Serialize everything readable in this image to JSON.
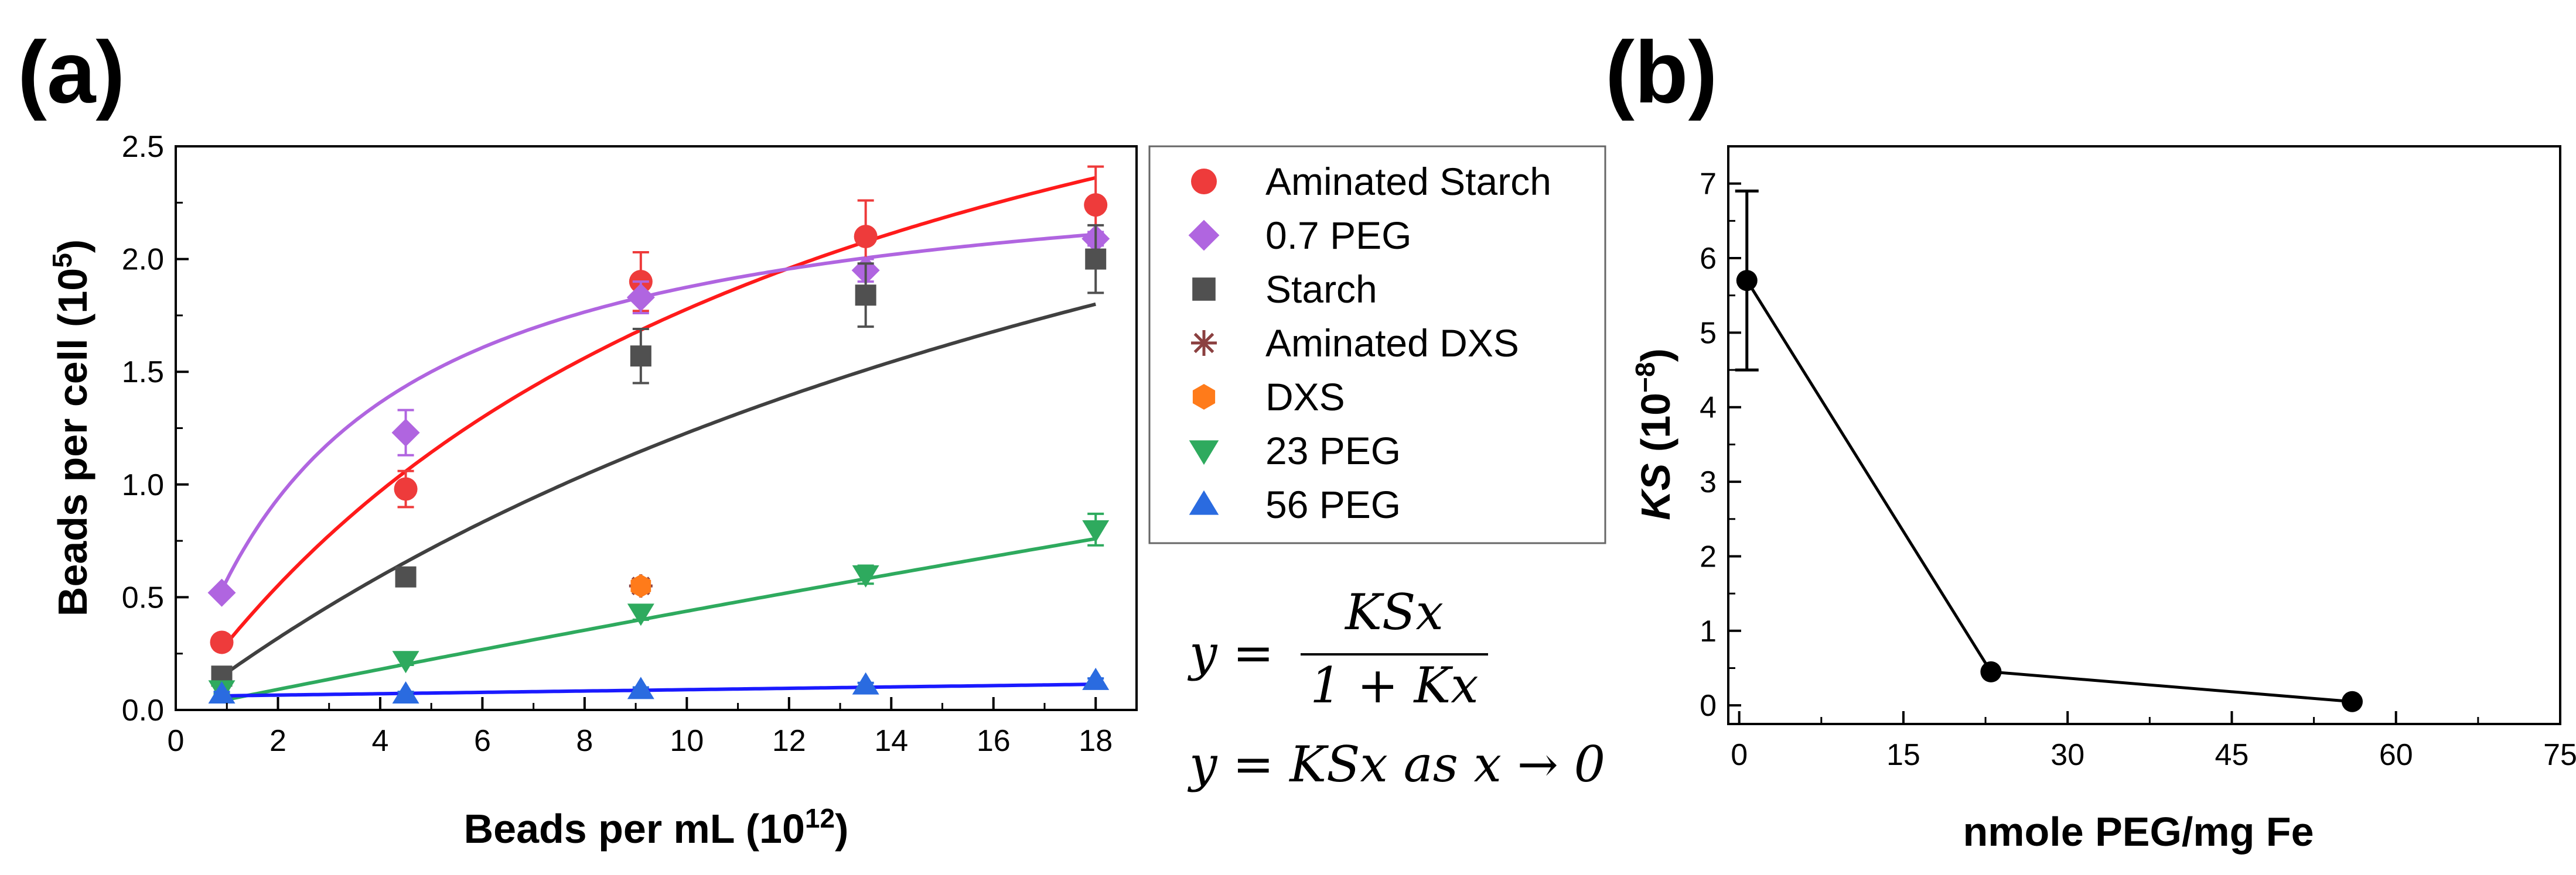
{
  "panel_labels": {
    "a": "(a)",
    "b": "(b)"
  },
  "equations": {
    "line1_y": "y =",
    "numerator": "KSx",
    "denominator": "1 + Kx",
    "line2": "y = KSx as x → 0"
  },
  "chart_data": [
    {
      "id": "a",
      "type": "scatter",
      "title": "",
      "xlabel_main": "Beads per mL (10",
      "xlabel_sup": "12",
      "xlabel_end": ")",
      "ylabel_main": "Beads per cell (10",
      "ylabel_sup": "5",
      "ylabel_end": ")",
      "xlim": [
        0,
        18.8
      ],
      "ylim": [
        0,
        2.5
      ],
      "xticks": [
        0,
        2,
        4,
        6,
        8,
        10,
        12,
        14,
        16,
        18
      ],
      "yticks": [
        0.0,
        0.5,
        1.0,
        1.5,
        2.0,
        2.5
      ],
      "ytick_labels": [
        "0.0",
        "0.5",
        "1.0",
        "1.5",
        "2.0",
        "2.5"
      ],
      "legend_position": "outside-right",
      "series": [
        {
          "name": "Aminated Starch",
          "marker": "circle",
          "color": "#ee3b3b",
          "x": [
            0.9,
            4.5,
            9.1,
            13.5,
            18
          ],
          "y": [
            0.3,
            0.98,
            1.9,
            2.1,
            2.24
          ],
          "err": [
            0.02,
            0.08,
            0.13,
            0.16,
            0.17
          ],
          "fit": {
            "K": 0.08,
            "S": 4.0,
            "color": "#ff1a1a"
          }
        },
        {
          "name": "0.7 PEG",
          "marker": "diamond",
          "color": "#b065e0",
          "x": [
            0.9,
            4.5,
            9.1,
            13.5,
            18
          ],
          "y": [
            0.52,
            1.23,
            1.83,
            1.95,
            2.09
          ],
          "err": [
            0.02,
            0.1,
            0.07,
            0.05,
            0.03
          ],
          "fit": {
            "K": 0.3,
            "S": 2.5,
            "color": "#b065e0"
          }
        },
        {
          "name": "Starch",
          "marker": "square",
          "color": "#505050",
          "x": [
            0.9,
            4.5,
            9.1,
            13.5,
            18
          ],
          "y": [
            0.15,
            0.59,
            1.57,
            1.84,
            2.0
          ],
          "err": [
            0.02,
            0.03,
            0.12,
            0.14,
            0.15
          ],
          "fit": {
            "K": 0.04,
            "S": 4.3,
            "color": "#404040"
          }
        },
        {
          "name": "Aminated DXS",
          "marker": "asterisk",
          "color": "#8b4040",
          "x": [
            9.1
          ],
          "y": [
            0.55
          ],
          "err": [
            0.02
          ]
        },
        {
          "name": "DXS",
          "marker": "hexagon",
          "color": "#ff7b1a",
          "x": [
            9.1
          ],
          "y": [
            0.55
          ],
          "err": [
            0.02
          ]
        },
        {
          "name": "23 PEG",
          "marker": "triangle-down",
          "color": "#2eaa5e",
          "x": [
            0.9,
            4.5,
            9.1,
            13.5,
            18
          ],
          "y": [
            0.09,
            0.22,
            0.43,
            0.6,
            0.8
          ],
          "err": [
            0.02,
            0.02,
            0.03,
            0.04,
            0.07
          ],
          "fit": {
            "K": 0.005,
            "S": 9.2,
            "color": "#2eaa5e"
          }
        },
        {
          "name": "56 PEG",
          "marker": "triangle-up",
          "color": "#2a6be0",
          "x": [
            0.9,
            4.5,
            9.1,
            13.5,
            18
          ],
          "y": [
            0.07,
            0.07,
            0.09,
            0.11,
            0.13
          ],
          "err": [
            0.01,
            0.01,
            0.01,
            0.01,
            0.01
          ],
          "fit": {
            "linear": true,
            "intercept": 0.06,
            "slope": 0.003,
            "color": "#1a1aff"
          }
        }
      ]
    },
    {
      "id": "b",
      "type": "line",
      "title": "",
      "xlabel": "nmole PEG/mg Fe",
      "ylabel_main": "KS",
      "ylabel_rest": " (10",
      "ylabel_sup": "−8",
      "ylabel_end": ")",
      "xlim": [
        -1,
        75
      ],
      "ylim": [
        -0.25,
        7.5
      ],
      "xticks": [
        0,
        15,
        30,
        45,
        60,
        75
      ],
      "yticks": [
        0,
        1,
        2,
        3,
        4,
        5,
        6,
        7
      ],
      "series": [
        {
          "name": "KS",
          "color": "#000000",
          "x": [
            0.7,
            23,
            56
          ],
          "y": [
            5.7,
            0.45,
            0.05
          ],
          "err": [
            1.2,
            0.06,
            0.04
          ]
        }
      ]
    }
  ]
}
